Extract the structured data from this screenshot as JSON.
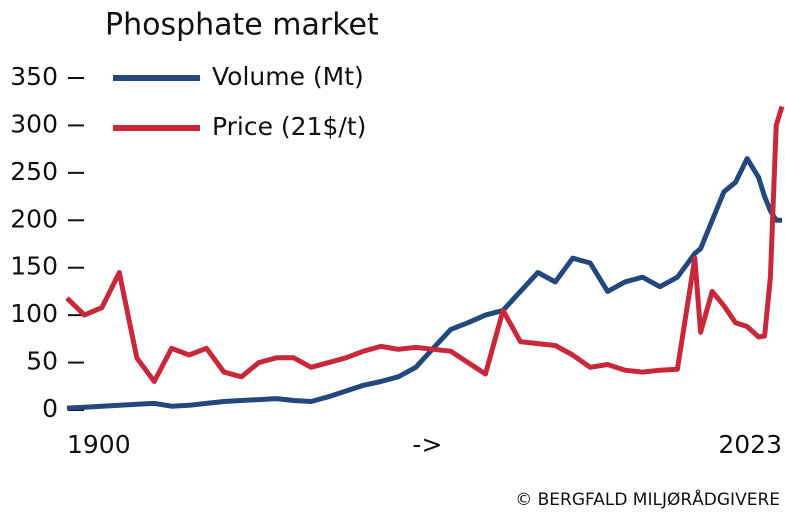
{
  "chart_data": {
    "type": "line",
    "title": "Phosphate market",
    "x": [
      1900,
      1903,
      1906,
      1909,
      1912,
      1915,
      1918,
      1921,
      1924,
      1927,
      1930,
      1933,
      1936,
      1939,
      1942,
      1945,
      1948,
      1951,
      1954,
      1957,
      1960,
      1963,
      1966,
      1969,
      1972,
      1975,
      1978,
      1981,
      1984,
      1987,
      1990,
      1993,
      1996,
      1999,
      2002,
      2005,
      2008,
      2009,
      2011,
      2013,
      2015,
      2017,
      2019,
      2020,
      2021,
      2022,
      2023
    ],
    "series": [
      {
        "name": "Volume (Mt)",
        "color": "#24487d",
        "values": [
          2,
          3,
          4,
          5,
          6,
          7,
          4,
          5,
          7,
          9,
          10,
          11,
          12,
          10,
          9,
          14,
          20,
          26,
          30,
          35,
          45,
          65,
          85,
          92,
          100,
          105,
          125,
          145,
          135,
          160,
          155,
          125,
          135,
          140,
          130,
          140,
          165,
          170,
          200,
          230,
          240,
          265,
          245,
          225,
          210,
          200,
          200
        ]
      },
      {
        "name": "Price (21$/t)",
        "color": "#c8283a",
        "values": [
          118,
          100,
          108,
          145,
          55,
          30,
          65,
          58,
          65,
          40,
          35,
          50,
          55,
          55,
          45,
          50,
          55,
          62,
          67,
          64,
          66,
          64,
          62,
          50,
          38,
          105,
          72,
          70,
          68,
          58,
          45,
          48,
          42,
          40,
          42,
          43,
          160,
          82,
          125,
          110,
          92,
          88,
          77,
          78,
          140,
          300,
          320
        ]
      }
    ],
    "xlim": [
      1900,
      2023
    ],
    "xticks": [
      1900,
      {
        "value": 1962,
        "label": "->"
      },
      2023
    ],
    "ylim": [
      0,
      350
    ],
    "yticks": [
      0,
      50,
      100,
      150,
      200,
      250,
      300,
      350
    ],
    "legend": "top-left",
    "credit": "© BERGFALD MILJØRÅDGIVERE"
  }
}
